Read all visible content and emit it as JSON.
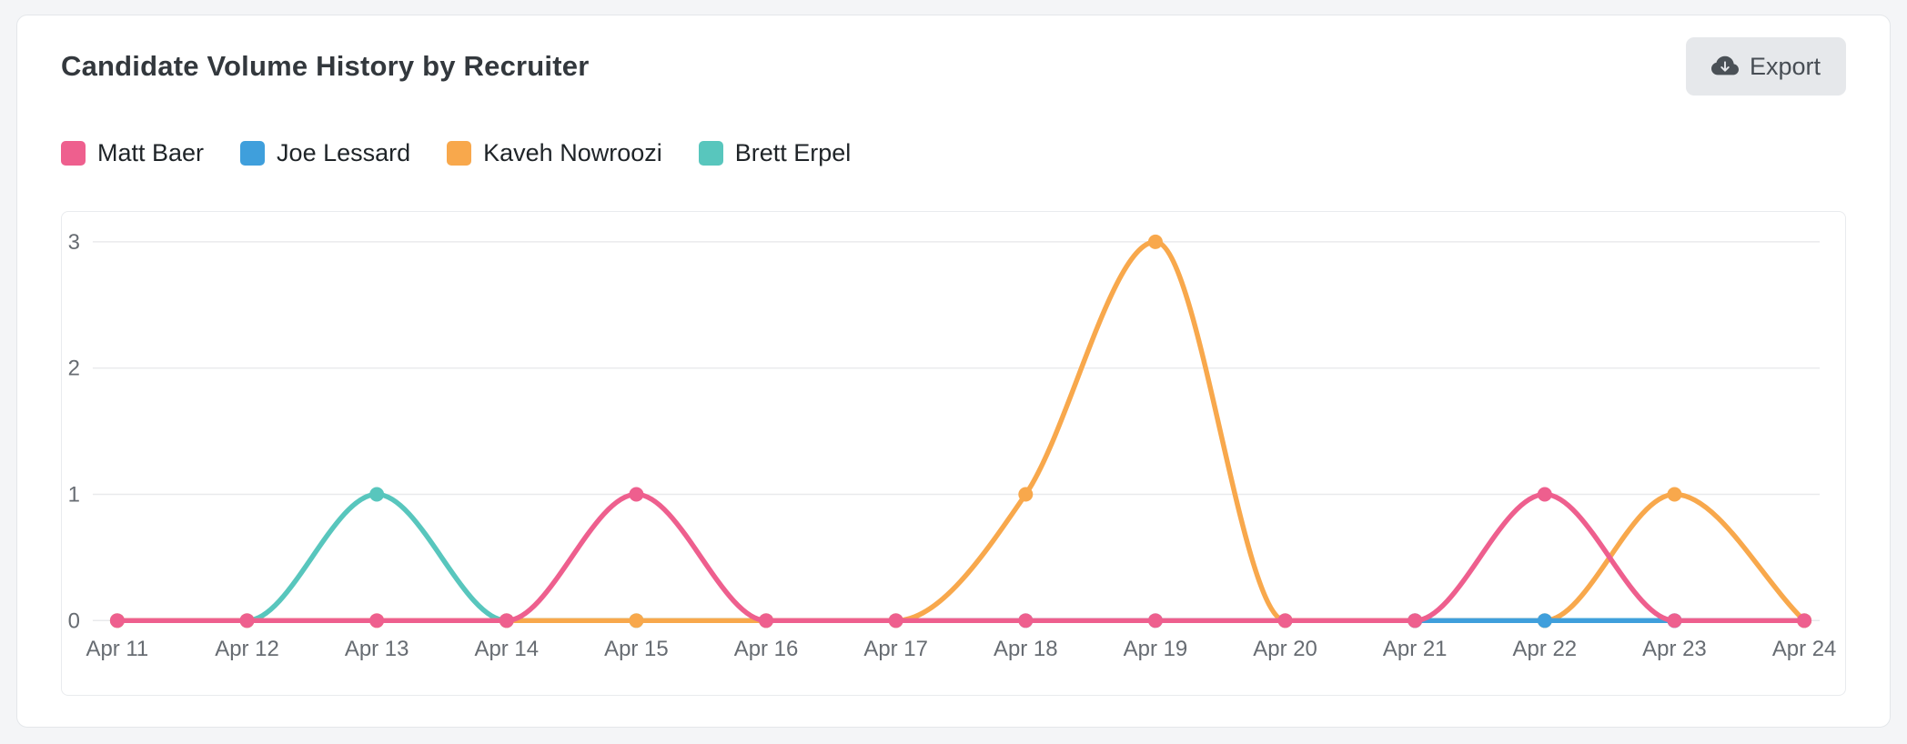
{
  "header": {
    "title": "Candidate Volume History by Recruiter",
    "export_label": "Export"
  },
  "ui_colors": {
    "card_background": "#ffffff",
    "page_background": "#f4f5f7",
    "export_button_background": "#e6e8eb",
    "export_button_text": "#474d54",
    "grid_line": "#e9eaec",
    "axis_text": "#676c72",
    "title_text": "#33383d"
  },
  "chart_data": {
    "type": "line",
    "title": "Candidate Volume History by Recruiter",
    "x": [
      "Apr 11",
      "Apr 12",
      "Apr 13",
      "Apr 14",
      "Apr 15",
      "Apr 16",
      "Apr 17",
      "Apr 18",
      "Apr 19",
      "Apr 20",
      "Apr 21",
      "Apr 22",
      "Apr 23",
      "Apr 24"
    ],
    "series": [
      {
        "name": "Matt Baer",
        "color": "#ee5f8e",
        "values": [
          0,
          0,
          0,
          0,
          1,
          0,
          0,
          0,
          0,
          0,
          0,
          1,
          0,
          0
        ]
      },
      {
        "name": "Joe Lessard",
        "color": "#3f9fdc",
        "values": [
          null,
          null,
          null,
          null,
          null,
          null,
          null,
          null,
          null,
          null,
          0,
          0,
          0,
          null
        ]
      },
      {
        "name": "Kaveh Nowroozi",
        "color": "#f8a84c",
        "values": [
          0,
          0,
          0,
          0,
          0,
          0,
          0,
          1,
          3,
          0,
          0,
          0,
          1,
          0
        ]
      },
      {
        "name": "Brett Erpel",
        "color": "#58c6bd",
        "values": [
          0,
          0,
          1,
          0,
          0,
          0,
          0,
          0,
          0,
          0,
          0,
          0,
          0,
          0
        ]
      }
    ],
    "xlabel": "",
    "ylabel": "",
    "ylim": [
      0,
      3
    ],
    "yticks": [
      0,
      1,
      2,
      3
    ],
    "grid": "horizontal",
    "grid_color": "#e9eaec",
    "axis_text_color": "#676c72",
    "legend_position": "top-left",
    "line_style": "smooth-monotone",
    "point_style": "filled-circle",
    "draw_order_top_to_bottom": [
      "Matt Baer",
      "Joe Lessard",
      "Kaveh Nowroozi",
      "Brett Erpel"
    ]
  }
}
